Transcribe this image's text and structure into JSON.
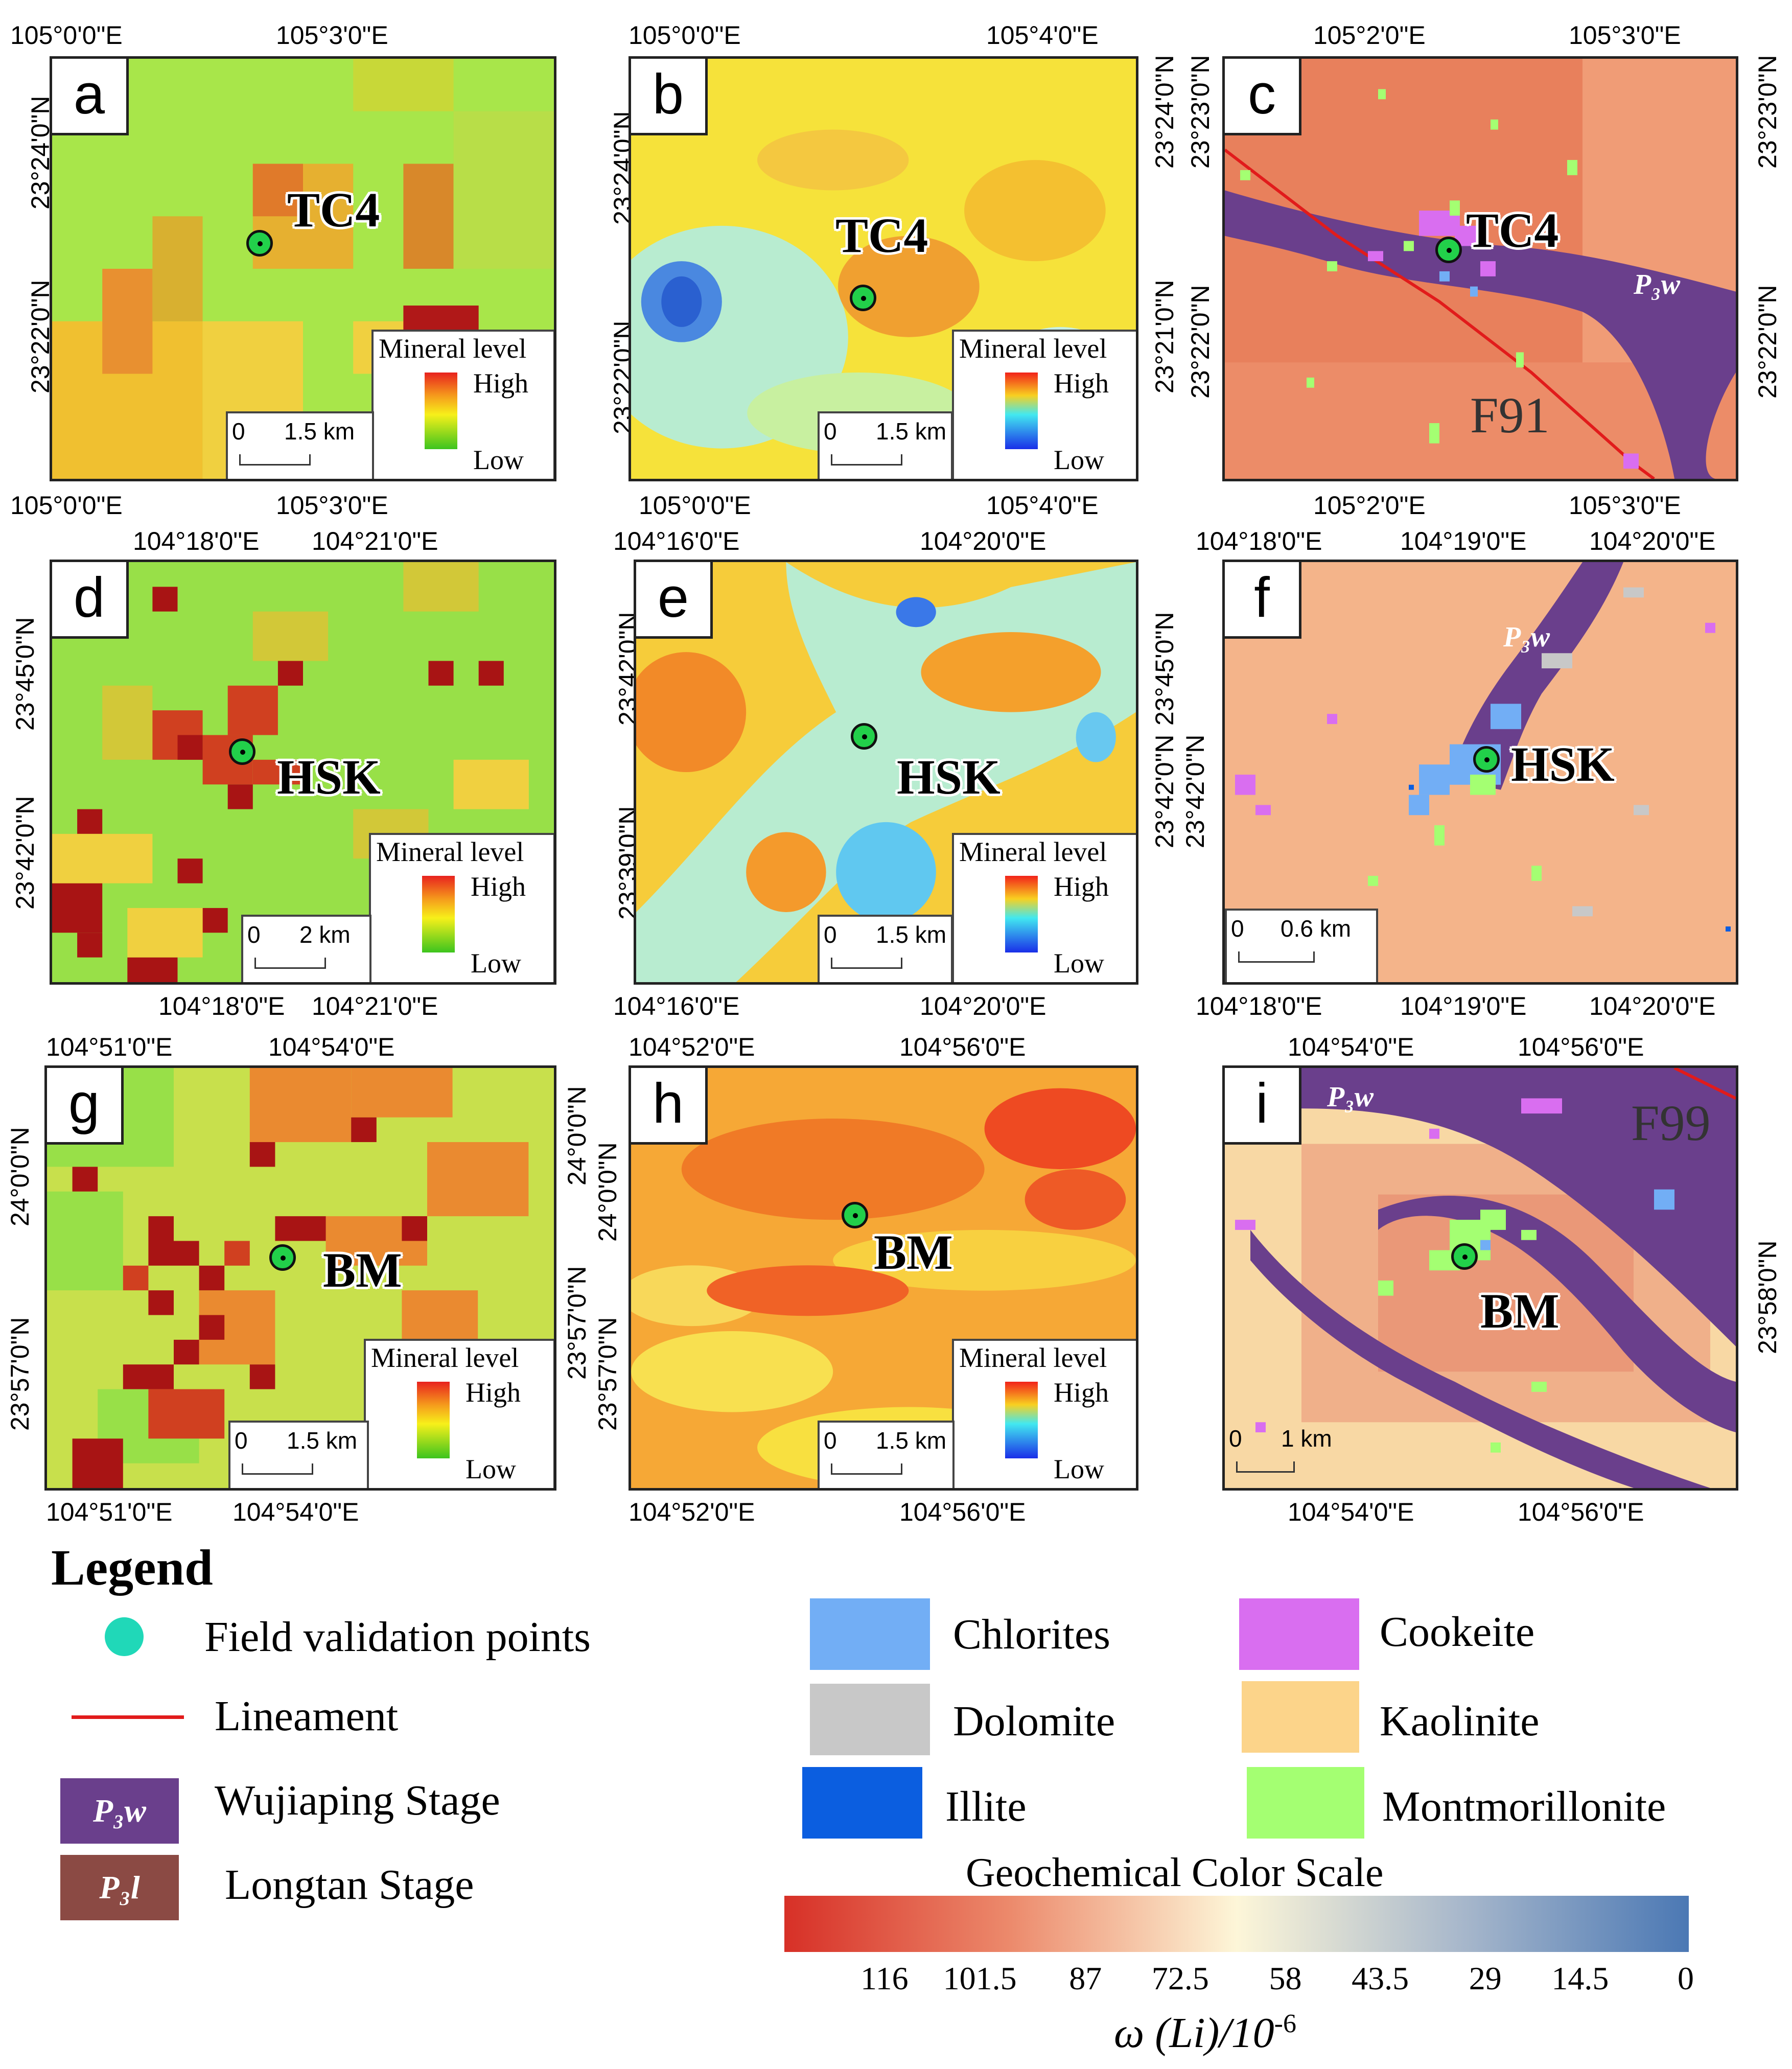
{
  "panels": {
    "a": {
      "letter": "a",
      "site": "TC4",
      "top_coords": [
        "105°0'0\"E",
        "105°3'0\"E"
      ],
      "bottom_coords": [
        "105°0'0\"E",
        "105°3'0\"E"
      ],
      "left_coords": [
        "23°24'0\"N",
        "23°22'0\"N"
      ],
      "mineral_title": "Mineral level",
      "high": "High",
      "low": "Low",
      "scale_zero": "0",
      "scale_dist": "1.5 km"
    },
    "b": {
      "letter": "b",
      "site": "TC4",
      "top_coords": [
        "105°0'0\"E",
        "105°4'0\"E"
      ],
      "bottom_coords": [
        "105°0'0\"E",
        "105°4'0\"E"
      ],
      "left_coords": [
        "23°24'0\"N",
        "23°22'0\"N"
      ],
      "right_coords": [
        "23°24'0\"N",
        "23°21'0\"N"
      ],
      "mineral_title": "Mineral level",
      "high": "High",
      "low": "Low",
      "scale_zero": "0",
      "scale_dist": "1.5 km"
    },
    "c": {
      "letter": "c",
      "site": "TC4",
      "top_coords": [
        "105°2'0\"E",
        "105°3'0\"E"
      ],
      "bottom_coords": [
        "105°2'0\"E",
        "105°3'0\"E"
      ],
      "left_coords": [
        "23°23'0\"N",
        "23°22'0\"N"
      ],
      "right_coords": [
        "23°23'0\"N",
        "23°22'0\"N"
      ],
      "fault": "F91",
      "geo_label": "P₃w"
    },
    "d": {
      "letter": "d",
      "site": "HSK",
      "top_coords": [
        "104°18'0\"E",
        "104°21'0\"E"
      ],
      "bottom_coords": [
        "104°18'0\"E",
        "104°21'0\"E"
      ],
      "left_coords": [
        "23°45'0\"N",
        "23°42'0\"N"
      ],
      "mineral_title": "Mineral level",
      "high": "High",
      "low": "Low",
      "scale_zero": "0",
      "scale_dist": "2 km"
    },
    "e": {
      "letter": "e",
      "site": "HSK",
      "top_coords": [
        "104°16'0\"E",
        "104°20'0\"E"
      ],
      "bottom_coords": [
        "104°16'0\"E",
        "104°20'0\"E"
      ],
      "left_coords": [
        "23°42'0\"N",
        "23°39'0\"N"
      ],
      "right_coords": [
        "23°45'0\"N",
        "23°42'0\"N"
      ],
      "mineral_title": "Mineral level",
      "high": "High",
      "low": "Low",
      "scale_zero": "0",
      "scale_dist": "1.5 km"
    },
    "f": {
      "letter": "f",
      "site": "HSK",
      "top_coords": [
        "104°18'0\"E",
        "104°19'0\"E",
        "104°20'0\"E"
      ],
      "bottom_coords": [
        "104°18'0\"E",
        "104°19'0\"E",
        "104°20'0\"E"
      ],
      "right_coords": [
        "23°42'0\"N"
      ],
      "scale_zero": "0",
      "scale_dist": "0.6 km",
      "geo_label": "P₃w"
    },
    "g": {
      "letter": "g",
      "site": "BM",
      "top_coords": [
        "104°51'0\"E",
        "104°54'0\"E"
      ],
      "bottom_coords": [
        "104°51'0\"E",
        "104°54'0\"E"
      ],
      "left_coords": [
        "24°0'0\"N",
        "23°57'0\"N"
      ],
      "right_coords": [
        "24°0'0\"N",
        "23°57'0\"N"
      ],
      "mineral_title": "Mineral level",
      "high": "High",
      "low": "Low",
      "scale_zero": "0",
      "scale_dist": "1.5 km"
    },
    "h": {
      "letter": "h",
      "site": "BM",
      "top_coords": [
        "104°52'0\"E",
        "104°56'0\"E"
      ],
      "bottom_coords": [
        "104°52'0\"E",
        "104°56'0\"E"
      ],
      "left_coords": [
        "24°0'0\"N",
        "23°57'0\"N"
      ],
      "mineral_title": "Mineral level",
      "high": "High",
      "low": "Low",
      "scale_zero": "0",
      "scale_dist": "1.5 km"
    },
    "i": {
      "letter": "i",
      "site": "BM",
      "top_coords": [
        "104°54'0\"E",
        "104°56'0\"E"
      ],
      "bottom_coords": [
        "104°54'0\"E",
        "104°56'0\"E"
      ],
      "right_coords": [
        "23°58'0\"N"
      ],
      "fault": "F99",
      "geo_label": "P₃w",
      "scale_zero": "0",
      "scale_dist": "1 km"
    }
  },
  "legend": {
    "title": "Legend",
    "field_points": "Field validation points",
    "lineament": "Lineament",
    "wujiaping_symbol": "P₃w",
    "wujiaping": "Wujiaping Stage",
    "longtan_symbol": "P₃l",
    "longtan": "Longtan Stage",
    "minerals": [
      {
        "name": "Chlorites",
        "color": "#72aef5"
      },
      {
        "name": "Cookeite",
        "color": "#d96ef0"
      },
      {
        "name": "Dolomite",
        "color": "#c8c8c8"
      },
      {
        "name": "Kaolinite",
        "color": "#fcd48a"
      },
      {
        "name": "Illite",
        "color": "#0b5ee0"
      },
      {
        "name": "Montmorillonite",
        "color": "#a4ff72"
      }
    ],
    "wujiaping_color": "#6a3f8c",
    "longtan_color": "#8b4a44",
    "lineament_color": "#e11b1b",
    "field_color": "#20d8b8"
  },
  "color_scale": {
    "title": "Geochemical Color Scale",
    "ticks": [
      "116",
      "101.5",
      "87",
      "72.5",
      "58",
      "43.5",
      "29",
      "14.5",
      "0"
    ],
    "axis_label": "ω  (Li)/10",
    "axis_exp": "-6"
  }
}
